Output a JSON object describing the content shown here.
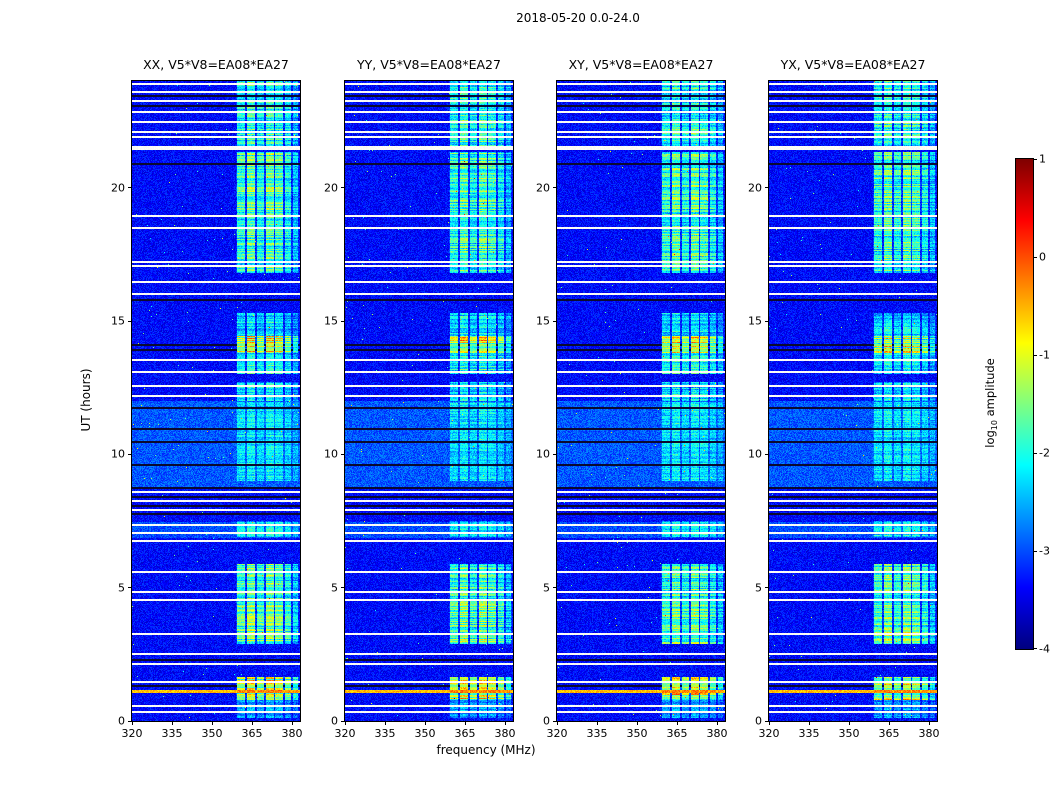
{
  "chart_data": {
    "type": "heatmap",
    "title": "2018-05-20 0.0-24.0",
    "panels": [
      {
        "label": "XX, V5*V8=EA08*EA27"
      },
      {
        "label": "YY, V5*V8=EA08*EA27"
      },
      {
        "label": "XY, V5*V8=EA08*EA27"
      },
      {
        "label": "YX, V5*V8=EA08*EA27"
      }
    ],
    "xlabel": "frequency (MHz)",
    "ylabel": "UT (hours)",
    "x_range": [
      320,
      383
    ],
    "x_ticks": [
      320,
      335,
      350,
      365,
      380
    ],
    "y_range": [
      0,
      24
    ],
    "y_ticks": [
      0,
      5,
      10,
      15,
      20
    ],
    "colorbar": {
      "label_prefix": "log",
      "label_sub": "10",
      "label_suffix": " amplitude",
      "range": [
        -4,
        1
      ],
      "ticks": [
        1,
        0,
        -1,
        -2,
        -3,
        -4
      ],
      "colormap": "jet"
    },
    "background_level": -3.35,
    "noise_amplitude": 0.55,
    "light_background_intervals": [
      [
        6.85,
        7.45,
        -3.0
      ],
      [
        8.7,
        12.0,
        -2.95
      ]
    ],
    "emission_band_mhz": [
      359,
      382.5
    ],
    "emission_columns_mhz": [
      [
        359.5,
        362.5,
        0.85
      ],
      [
        363.2,
        366.2,
        1.0
      ],
      [
        366.8,
        369.6,
        0.8
      ],
      [
        370.2,
        373.2,
        1.0
      ],
      [
        373.8,
        376.6,
        0.9
      ],
      [
        377.2,
        379.8,
        0.75
      ],
      [
        380.4,
        382.4,
        0.55
      ]
    ],
    "emission_intervals": [
      [
        0.1,
        0.8,
        0.8
      ],
      [
        0.8,
        1.65,
        2.3
      ],
      [
        2.9,
        4.4,
        1.8
      ],
      [
        4.4,
        5.9,
        1.6
      ],
      [
        6.9,
        7.5,
        0.9
      ],
      [
        9.0,
        11.95,
        0.8
      ],
      [
        12.0,
        12.7,
        1.2
      ],
      [
        13.0,
        13.8,
        1.35
      ],
      [
        13.8,
        14.45,
        2.3
      ],
      [
        14.45,
        15.3,
        1.15
      ],
      [
        16.8,
        19.2,
        1.6
      ],
      [
        19.2,
        21.35,
        1.7
      ],
      [
        21.5,
        22.7,
        1.5
      ],
      [
        22.7,
        24.0,
        1.45
      ]
    ],
    "white_line_hours": [
      0.35,
      0.55,
      1.45,
      2.15,
      2.5,
      3.25,
      4.55,
      4.85,
      5.6,
      6.75,
      7.05,
      7.35,
      7.9,
      8.25,
      8.6,
      12.2,
      12.55,
      13.1,
      13.55,
      16.0,
      16.45,
      17.05,
      17.2,
      18.5,
      18.95,
      21.9,
      22.1,
      22.45,
      22.85,
      23.25,
      23.6,
      23.9
    ],
    "black_line_hours": [
      1.3,
      2.3,
      7.75,
      8.05,
      8.4,
      8.75,
      9.6,
      10.45,
      10.95,
      11.75,
      13.9,
      14.1,
      15.8,
      20.9,
      23.05,
      23.45
    ],
    "bright_line_hours": [
      1.1
    ],
    "thick_white_line_hours": [
      21.45
    ]
  }
}
